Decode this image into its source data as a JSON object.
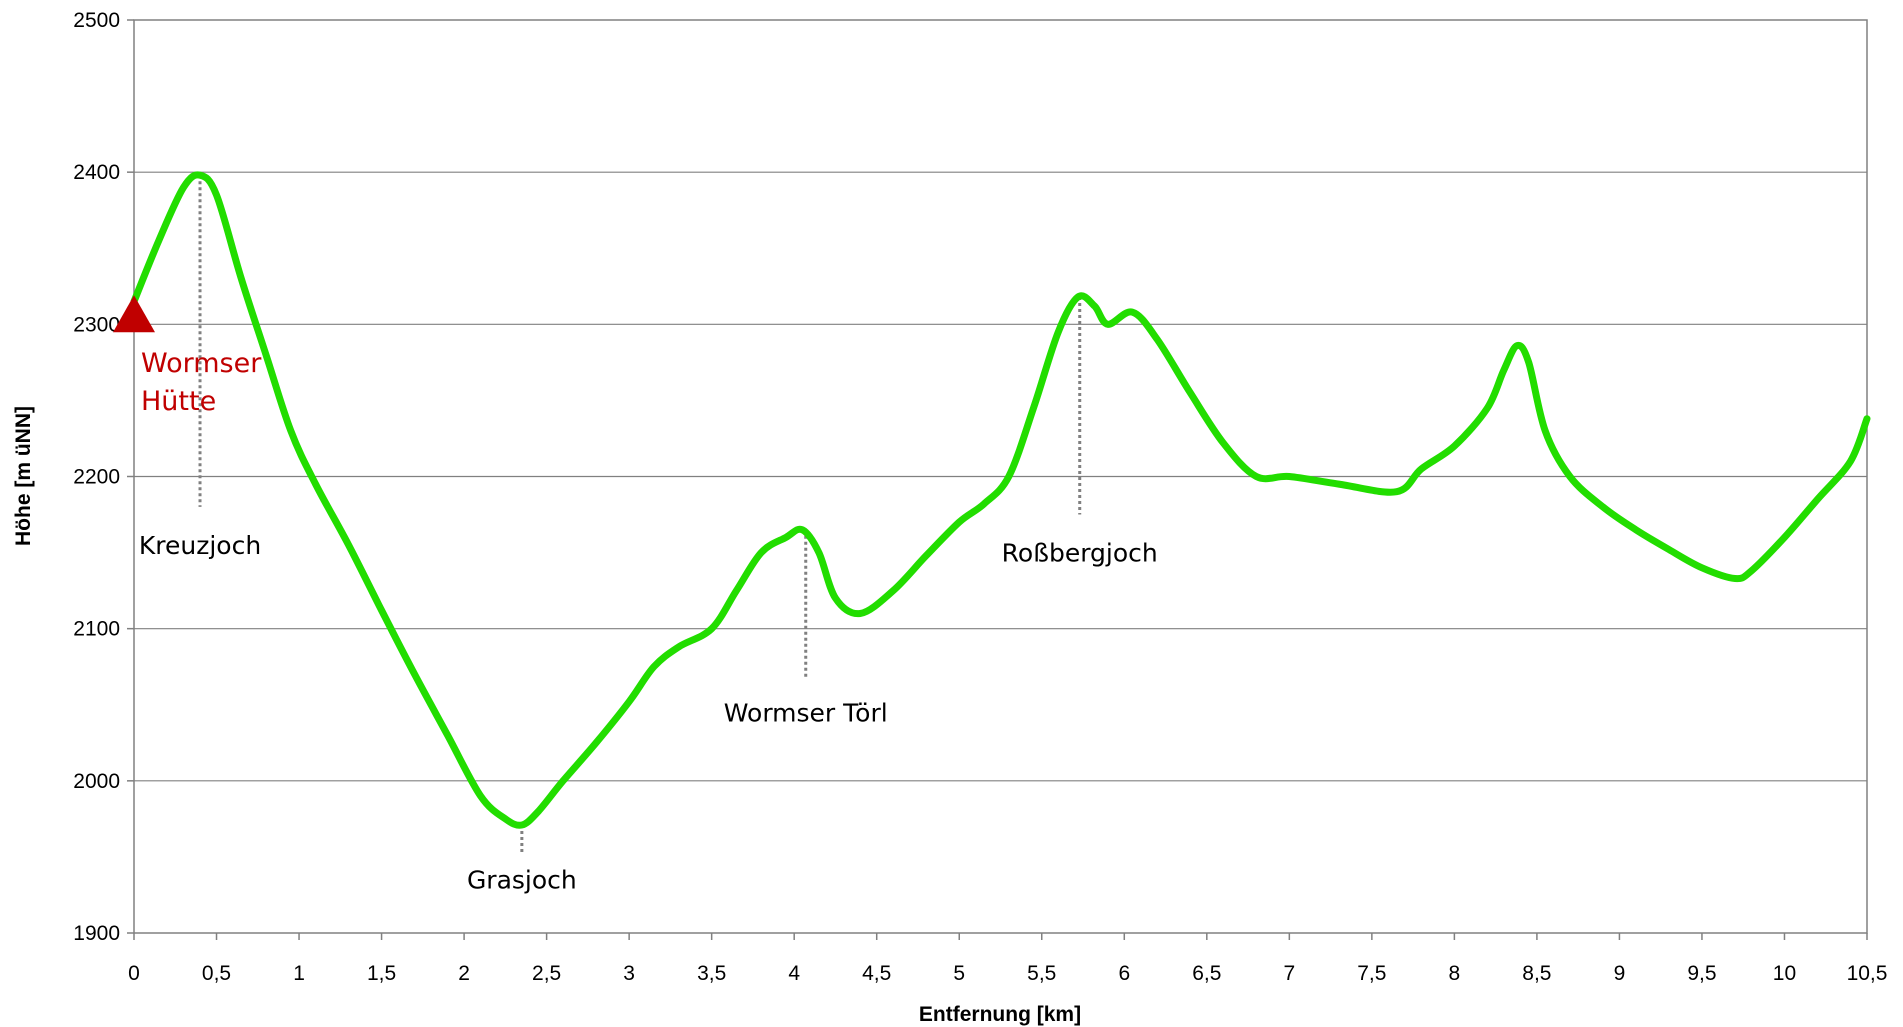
{
  "chart_data": {
    "type": "line",
    "xlabel": "Entfernung [km]",
    "ylabel": "Höhe [m üNN]",
    "xlim": [
      0,
      10.5
    ],
    "ylim": [
      1900,
      2500
    ],
    "x_ticks": [
      0,
      0.5,
      1,
      1.5,
      2,
      2.5,
      3,
      3.5,
      4,
      4.5,
      5,
      5.5,
      6,
      6.5,
      7,
      7.5,
      8,
      8.5,
      9,
      9.5,
      10,
      10.5
    ],
    "x_tick_labels": [
      "0",
      "0,5",
      "1",
      "1,5",
      "2",
      "2,5",
      "3",
      "3,5",
      "4",
      "4,5",
      "5",
      "5,5",
      "6",
      "6,5",
      "7",
      "7,5",
      "8",
      "8,5",
      "9",
      "9,5",
      "10",
      "10,5"
    ],
    "y_ticks": [
      1900,
      2000,
      2100,
      2200,
      2300,
      2400,
      2500
    ],
    "y_tick_labels": [
      "1900",
      "2000",
      "2100",
      "2200",
      "2300",
      "2400",
      "2500"
    ],
    "grid": "horizontal",
    "series": [
      {
        "color": "#22dd00",
        "points": [
          [
            0.0,
            2315
          ],
          [
            0.15,
            2355
          ],
          [
            0.3,
            2390
          ],
          [
            0.4,
            2398
          ],
          [
            0.5,
            2385
          ],
          [
            0.65,
            2330
          ],
          [
            0.8,
            2280
          ],
          [
            0.95,
            2230
          ],
          [
            1.1,
            2195
          ],
          [
            1.3,
            2155
          ],
          [
            1.5,
            2112
          ],
          [
            1.7,
            2070
          ],
          [
            1.9,
            2030
          ],
          [
            2.1,
            1990
          ],
          [
            2.25,
            1975
          ],
          [
            2.35,
            1971
          ],
          [
            2.45,
            1980
          ],
          [
            2.6,
            2000
          ],
          [
            2.8,
            2025
          ],
          [
            3.0,
            2052
          ],
          [
            3.15,
            2075
          ],
          [
            3.3,
            2088
          ],
          [
            3.5,
            2100
          ],
          [
            3.65,
            2125
          ],
          [
            3.8,
            2150
          ],
          [
            3.95,
            2160
          ],
          [
            4.05,
            2165
          ],
          [
            4.15,
            2150
          ],
          [
            4.25,
            2120
          ],
          [
            4.4,
            2110
          ],
          [
            4.6,
            2125
          ],
          [
            4.8,
            2148
          ],
          [
            5.0,
            2170
          ],
          [
            5.15,
            2182
          ],
          [
            5.3,
            2200
          ],
          [
            5.45,
            2245
          ],
          [
            5.6,
            2295
          ],
          [
            5.72,
            2318
          ],
          [
            5.82,
            2312
          ],
          [
            5.9,
            2300
          ],
          [
            6.05,
            2308
          ],
          [
            6.2,
            2290
          ],
          [
            6.4,
            2255
          ],
          [
            6.6,
            2222
          ],
          [
            6.8,
            2200
          ],
          [
            7.0,
            2200
          ],
          [
            7.3,
            2195
          ],
          [
            7.65,
            2190
          ],
          [
            7.8,
            2205
          ],
          [
            8.0,
            2220
          ],
          [
            8.2,
            2245
          ],
          [
            8.3,
            2270
          ],
          [
            8.38,
            2286
          ],
          [
            8.45,
            2275
          ],
          [
            8.55,
            2230
          ],
          [
            8.7,
            2200
          ],
          [
            8.9,
            2180
          ],
          [
            9.1,
            2165
          ],
          [
            9.3,
            2152
          ],
          [
            9.5,
            2140
          ],
          [
            9.7,
            2133
          ],
          [
            9.8,
            2138
          ],
          [
            10.0,
            2160
          ],
          [
            10.2,
            2185
          ],
          [
            10.4,
            2210
          ],
          [
            10.5,
            2238
          ]
        ]
      }
    ],
    "start_marker": {
      "x": 0,
      "y": 2306,
      "shape": "triangle",
      "color": "#c00000"
    },
    "start_label": [
      "Wormser",
      "Hütte"
    ],
    "annotations": [
      {
        "label": "Kreuzjoch",
        "x": 0.4,
        "line_from": 2398,
        "line_to": 2180,
        "label_y": 2155
      },
      {
        "label": "Grasjoch",
        "x": 2.35,
        "line_from": 1971,
        "line_to": 1953,
        "label_y": 1935
      },
      {
        "label": "Wormser Törl",
        "x": 4.07,
        "line_from": 2165,
        "line_to": 2067,
        "label_y": 2045
      },
      {
        "label": "Roßbergjoch",
        "x": 5.73,
        "line_from": 2318,
        "line_to": 2175,
        "label_y": 2150
      }
    ]
  }
}
